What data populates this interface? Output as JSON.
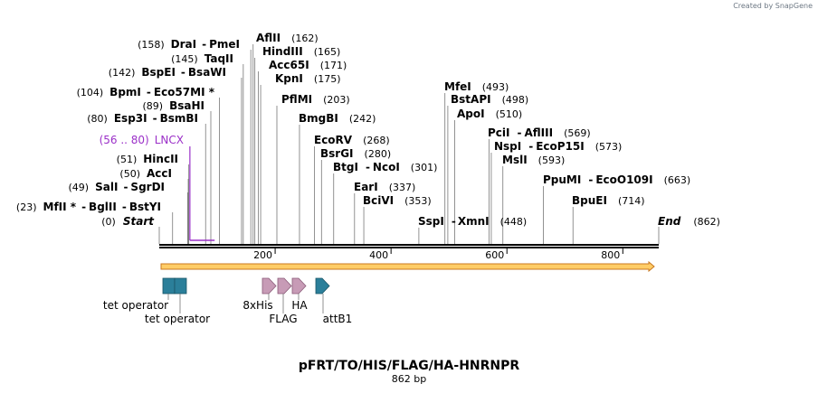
{
  "credit": {
    "prefix": "Created by",
    "brand": "SnapGene"
  },
  "plasmid": {
    "name": "pFRT/TO/HIS/FLAG/HA-HNRNPR",
    "length_text": "862 bp"
  },
  "ends": [
    {
      "label": "Start",
      "pos_text": "(0)"
    },
    {
      "label": "End",
      "pos_text": "(862)"
    }
  ],
  "sites": [
    {
      "pos_text": "(158)",
      "names": [
        "DraI",
        "PmeI"
      ]
    },
    {
      "pos_text": "(145)",
      "names": [
        "TaqII"
      ]
    },
    {
      "pos_text": "(142)",
      "names": [
        "BspEI",
        "BsaWI"
      ]
    },
    {
      "pos_text": "(104)",
      "names": [
        "BpmI",
        "Eco57MI *"
      ]
    },
    {
      "pos_text": "(89)",
      "names": [
        "BsaHI"
      ]
    },
    {
      "pos_text": "(80)",
      "names": [
        "Esp3I",
        "BsmBI"
      ]
    },
    {
      "pos_text": "(51)",
      "names": [
        "HincII"
      ]
    },
    {
      "pos_text": "(50)",
      "names": [
        "AccI"
      ]
    },
    {
      "pos_text": "(49)",
      "names": [
        "SalI",
        "SgrDI"
      ]
    },
    {
      "pos_text": "(23)",
      "names": [
        "MfII *",
        "BglII",
        "BstYI"
      ]
    },
    {
      "pos_text": "(162)",
      "names": [
        "AflII"
      ]
    },
    {
      "pos_text": "(165)",
      "names": [
        "HindIII"
      ]
    },
    {
      "pos_text": "(171)",
      "names": [
        "Acc65I"
      ]
    },
    {
      "pos_text": "(175)",
      "names": [
        "KpnI"
      ]
    },
    {
      "pos_text": "(203)",
      "names": [
        "PflMI"
      ]
    },
    {
      "pos_text": "(242)",
      "names": [
        "BmgBI"
      ]
    },
    {
      "pos_text": "(268)",
      "names": [
        "EcoRV"
      ]
    },
    {
      "pos_text": "(280)",
      "names": [
        "BsrGI"
      ]
    },
    {
      "pos_text": "(301)",
      "names": [
        "BtgI",
        "NcoI"
      ]
    },
    {
      "pos_text": "(337)",
      "names": [
        "EarI"
      ]
    },
    {
      "pos_text": "(353)",
      "names": [
        "BciVI"
      ]
    },
    {
      "pos_text": "(448)",
      "names": [
        "SspI",
        "XmnI"
      ]
    },
    {
      "pos_text": "(493)",
      "names": [
        "MfeI"
      ]
    },
    {
      "pos_text": "(498)",
      "names": [
        "BstAPI"
      ]
    },
    {
      "pos_text": "(510)",
      "names": [
        "ApoI"
      ]
    },
    {
      "pos_text": "(569)",
      "names": [
        "PciI",
        "AflIII"
      ]
    },
    {
      "pos_text": "(573)",
      "names": [
        "NspI",
        "EcoP15I"
      ]
    },
    {
      "pos_text": "(593)",
      "names": [
        "MslI"
      ]
    },
    {
      "pos_text": "(663)",
      "names": [
        "PpuMI",
        "EcoO109I"
      ]
    },
    {
      "pos_text": "(714)",
      "names": [
        "BpuEI"
      ]
    }
  ],
  "primer": {
    "label": "LNCX",
    "range_text": "(56 .. 80)",
    "color": "#9b30c8"
  },
  "ruler": {
    "length": 862,
    "ticks": [
      200,
      400,
      600,
      800
    ]
  },
  "features": [
    {
      "label": "tet operator",
      "start": 3,
      "end": 22,
      "color": "#2b7f9a"
    },
    {
      "label": "tet operator",
      "start": 23,
      "end": 42,
      "color": "#2b7f9a"
    },
    {
      "label": "8xHis",
      "start": 178,
      "end": 202,
      "color": "#c79bb6"
    },
    {
      "label": "FLAG",
      "start": 204,
      "end": 227,
      "color": "#c79bb6"
    },
    {
      "label": "HA",
      "start": 228,
      "end": 255,
      "color": "#c79bb6"
    },
    {
      "label": "attB1",
      "start": 270,
      "end": 295,
      "color": "#2b7f9a"
    }
  ],
  "colors": {
    "orf": "#ffcc66",
    "orf_outline": "#c87820",
    "backbone": "#000000",
    "leader": "#777777"
  }
}
